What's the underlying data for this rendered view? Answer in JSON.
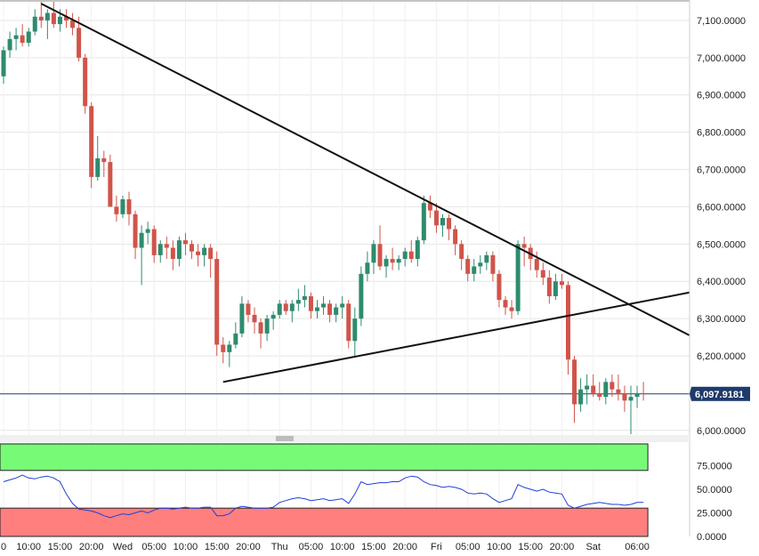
{
  "colors": {
    "up": "#2e8b6e",
    "down": "#d0544a",
    "grid": "#e6e6e6",
    "trendline": "#111111",
    "current_price_line": "#1f3b6b",
    "rsi_line": "#1f3fd8",
    "overbought_zone": "#77fb77",
    "oversold_zone": "#ff7f7f",
    "axis_text": "#222222"
  },
  "chart_data": [
    {
      "type": "candlestick",
      "ylim": [
        5990,
        7150
      ],
      "y_ticks": [
        "7,100.0000",
        "7,000.0000",
        "6,900.0000",
        "6,800.0000",
        "6,700.0000",
        "6,600.0000",
        "6,500.0000",
        "6,400.0000",
        "6,300.0000",
        "6,200.0000",
        "6,000.0000"
      ],
      "y_tick_values": [
        7100,
        7000,
        6900,
        6800,
        6700,
        6600,
        6500,
        6400,
        6300,
        6200,
        6000
      ],
      "x_labels": [
        "0",
        "10:00",
        "15:00",
        "20:00",
        "Wed",
        "05:00",
        "10:00",
        "15:00",
        "20:00",
        "Thu",
        "05:00",
        "10:00",
        "15:00",
        "20:00",
        "Fri",
        "05:00",
        "10:00",
        "15:00",
        "20:00",
        "Sat",
        "06:00"
      ],
      "x_label_index": [
        0,
        4,
        9,
        14,
        19,
        24,
        29,
        34,
        39,
        44,
        49,
        54,
        59,
        64,
        69,
        74,
        79,
        84,
        89,
        94,
        101
      ],
      "current_price": 6097.9181,
      "current_price_label": "6,097.9181",
      "candles": [
        [
          6950,
          7030,
          6930,
          7020
        ],
        [
          7020,
          7070,
          7000,
          7050
        ],
        [
          7050,
          7080,
          7020,
          7060
        ],
        [
          7060,
          7090,
          7030,
          7040
        ],
        [
          7040,
          7080,
          7030,
          7070
        ],
        [
          7070,
          7130,
          7060,
          7110
        ],
        [
          7110,
          7150,
          7080,
          7100
        ],
        [
          7100,
          7130,
          7050,
          7120
        ],
        [
          7120,
          7150,
          7080,
          7090
        ],
        [
          7090,
          7130,
          7070,
          7110
        ],
        [
          7110,
          7130,
          7080,
          7100
        ],
        [
          7100,
          7120,
          7060,
          7080
        ],
        [
          7080,
          7110,
          6990,
          7000
        ],
        [
          7000,
          7010,
          6850,
          6870
        ],
        [
          6870,
          6880,
          6650,
          6680
        ],
        [
          6680,
          6790,
          6670,
          6730
        ],
        [
          6730,
          6750,
          6680,
          6720
        ],
        [
          6720,
          6740,
          6600,
          6600
        ],
        [
          6600,
          6630,
          6560,
          6580
        ],
        [
          6580,
          6630,
          6570,
          6620
        ],
        [
          6620,
          6640,
          6550,
          6580
        ],
        [
          6580,
          6590,
          6460,
          6490
        ],
        [
          6490,
          6550,
          6390,
          6530
        ],
        [
          6530,
          6560,
          6500,
          6540
        ],
        [
          6540,
          6550,
          6450,
          6470
        ],
        [
          6470,
          6510,
          6450,
          6500
        ],
        [
          6500,
          6520,
          6460,
          6490
        ],
        [
          6490,
          6510,
          6430,
          6460
        ],
        [
          6460,
          6520,
          6440,
          6510
        ],
        [
          6510,
          6530,
          6470,
          6500
        ],
        [
          6500,
          6510,
          6460,
          6480
        ],
        [
          6480,
          6500,
          6440,
          6470
        ],
        [
          6470,
          6500,
          6440,
          6490
        ],
        [
          6490,
          6500,
          6410,
          6460
        ],
        [
          6460,
          6480,
          6200,
          6230
        ],
        [
          6230,
          6250,
          6180,
          6210
        ],
        [
          6210,
          6240,
          6170,
          6230
        ],
        [
          6230,
          6290,
          6220,
          6260
        ],
        [
          6260,
          6360,
          6250,
          6340
        ],
        [
          6340,
          6350,
          6290,
          6310
        ],
        [
          6310,
          6330,
          6260,
          6290
        ],
        [
          6290,
          6300,
          6220,
          6260
        ],
        [
          6260,
          6310,
          6240,
          6300
        ],
        [
          6300,
          6320,
          6270,
          6310
        ],
        [
          6310,
          6350,
          6300,
          6340
        ],
        [
          6340,
          6350,
          6310,
          6320
        ],
        [
          6320,
          6350,
          6290,
          6340
        ],
        [
          6340,
          6380,
          6320,
          6350
        ],
        [
          6350,
          6390,
          6330,
          6360
        ],
        [
          6360,
          6370,
          6300,
          6320
        ],
        [
          6320,
          6350,
          6300,
          6330
        ],
        [
          6330,
          6360,
          6310,
          6340
        ],
        [
          6340,
          6350,
          6290,
          6310
        ],
        [
          6310,
          6340,
          6290,
          6330
        ],
        [
          6330,
          6360,
          6300,
          6340
        ],
        [
          6340,
          6350,
          6220,
          6240
        ],
        [
          6240,
          6330,
          6200,
          6300
        ],
        [
          6300,
          6440,
          6280,
          6420
        ],
        [
          6420,
          6480,
          6400,
          6450
        ],
        [
          6450,
          6510,
          6420,
          6500
        ],
        [
          6500,
          6550,
          6430,
          6440
        ],
        [
          6440,
          6470,
          6410,
          6460
        ],
        [
          6460,
          6490,
          6430,
          6450
        ],
        [
          6450,
          6470,
          6430,
          6460
        ],
        [
          6460,
          6490,
          6440,
          6480
        ],
        [
          6480,
          6510,
          6450,
          6460
        ],
        [
          6460,
          6520,
          6440,
          6510
        ],
        [
          6510,
          6630,
          6500,
          6610
        ],
        [
          6610,
          6630,
          6570,
          6590
        ],
        [
          6590,
          6610,
          6530,
          6550
        ],
        [
          6550,
          6580,
          6520,
          6570
        ],
        [
          6570,
          6580,
          6510,
          6540
        ],
        [
          6540,
          6550,
          6470,
          6500
        ],
        [
          6500,
          6510,
          6430,
          6460
        ],
        [
          6460,
          6470,
          6400,
          6420
        ],
        [
          6420,
          6460,
          6400,
          6440
        ],
        [
          6440,
          6470,
          6420,
          6450
        ],
        [
          6450,
          6480,
          6430,
          6470
        ],
        [
          6470,
          6480,
          6400,
          6420
        ],
        [
          6420,
          6430,
          6330,
          6350
        ],
        [
          6350,
          6360,
          6310,
          6330
        ],
        [
          6330,
          6350,
          6300,
          6320
        ],
        [
          6320,
          6510,
          6310,
          6500
        ],
        [
          6500,
          6520,
          6440,
          6490
        ],
        [
          6490,
          6500,
          6430,
          6460
        ],
        [
          6460,
          6480,
          6410,
          6430
        ],
        [
          6430,
          6450,
          6390,
          6410
        ],
        [
          6410,
          6430,
          6340,
          6360
        ],
        [
          6360,
          6420,
          6350,
          6400
        ],
        [
          6400,
          6420,
          6380,
          6390
        ],
        [
          6390,
          6400,
          6150,
          6190
        ],
        [
          6190,
          6200,
          6020,
          6070
        ],
        [
          6070,
          6140,
          6050,
          6110
        ],
        [
          6110,
          6150,
          6070,
          6120
        ],
        [
          6120,
          6150,
          6090,
          6100
        ],
        [
          6100,
          6130,
          6080,
          6090
        ],
        [
          6090,
          6140,
          6070,
          6130
        ],
        [
          6130,
          6150,
          6090,
          6110
        ],
        [
          6110,
          6150,
          6080,
          6100
        ],
        [
          6100,
          6120,
          6050,
          6080
        ],
        [
          6080,
          6120,
          5990,
          6090
        ],
        [
          6090,
          6120,
          6060,
          6100
        ],
        [
          6100,
          6130,
          6080,
          6098
        ]
      ],
      "trendlines": [
        {
          "x1": 6,
          "y1": 7145,
          "x2": 115,
          "y2": 6255
        },
        {
          "x1": 35,
          "y1": 6130,
          "x2": 115,
          "y2": 6370
        }
      ]
    },
    {
      "type": "line",
      "ylim": [
        0,
        100
      ],
      "y_ticks": [
        "75.0000",
        "50.0000",
        "25.0000",
        "0.0000"
      ],
      "y_tick_values": [
        75,
        50,
        25,
        0
      ],
      "overbought_level": 70,
      "oversold_level": 30,
      "values": [
        58,
        60,
        62,
        65,
        62,
        61,
        63,
        64,
        62,
        58,
        45,
        35,
        29,
        28,
        27,
        25,
        22,
        20,
        22,
        24,
        23,
        25,
        27,
        25,
        28,
        30,
        30,
        29,
        30,
        31,
        30,
        30,
        31,
        31,
        22,
        22,
        24,
        30,
        32,
        31,
        30,
        30,
        30,
        31,
        36,
        38,
        40,
        41,
        40,
        38,
        39,
        40,
        38,
        39,
        40,
        35,
        45,
        58,
        55,
        56,
        57,
        57,
        58,
        58,
        62,
        64,
        63,
        58,
        55,
        54,
        52,
        53,
        52,
        50,
        46,
        45,
        46,
        45,
        40,
        36,
        38,
        40,
        55,
        52,
        50,
        48,
        50,
        47,
        46,
        45,
        33,
        30,
        32,
        34,
        35,
        36,
        35,
        34,
        34,
        33,
        34,
        36,
        36
      ]
    }
  ]
}
